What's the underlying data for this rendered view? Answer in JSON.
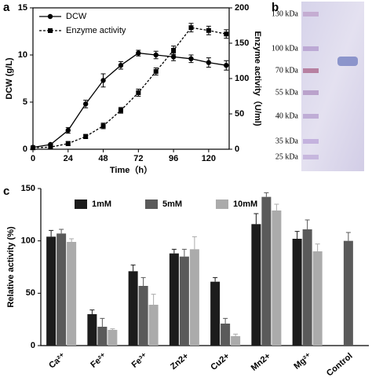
{
  "chart_data": [
    {
      "type": "line",
      "panel_label": "a",
      "x": [
        0,
        12,
        24,
        36,
        48,
        60,
        72,
        84,
        96,
        108,
        120,
        132
      ],
      "xlim": [
        0,
        134
      ],
      "xticks": [
        0,
        24,
        48,
        72,
        96,
        120
      ],
      "xlabel": "Time（h）",
      "ylabel": "DCW (g/L)",
      "ylim": [
        0,
        15
      ],
      "yticks": [
        0,
        5,
        10,
        15
      ],
      "y2label": "Enzyme activity（U/ml)",
      "y2lim": [
        0,
        200
      ],
      "y2ticks": [
        0,
        50,
        100,
        150,
        200
      ],
      "legend": "upper left",
      "series": [
        {
          "name": "DCW",
          "color": "#000000",
          "marker": "circle",
          "line_style": "solid",
          "values": [
            0.2,
            0.5,
            2.0,
            4.8,
            7.3,
            8.9,
            10.2,
            10.0,
            9.8,
            9.6,
            9.2,
            8.9
          ],
          "errors": [
            0.1,
            0.1,
            0.3,
            0.4,
            0.7,
            0.4,
            0.3,
            0.4,
            0.4,
            0.4,
            0.5,
            0.5
          ]
        },
        {
          "name": "Enzyme activity",
          "color": "#000000",
          "marker": "square",
          "line_style": "dashed",
          "axis": "y2",
          "values": [
            2,
            3,
            8,
            18,
            33,
            55,
            80,
            110,
            140,
            172,
            168,
            163
          ],
          "errors": [
            2,
            2,
            3,
            3,
            4,
            4,
            5,
            5,
            6,
            6,
            6,
            6
          ]
        }
      ]
    },
    {
      "type": "bar",
      "panel_label": "c",
      "categories": [
        "Ca²⁺",
        "Fe²⁺",
        "Fe³⁺",
        "Zn2+",
        "Cu2+",
        "Mn2+",
        "Mg²⁺",
        "Control"
      ],
      "ylabel": "Relative activity (%)",
      "ylim": [
        0,
        150
      ],
      "yticks": [
        0,
        50,
        100,
        150
      ],
      "legend": "upper left",
      "series": [
        {
          "name": "1mM",
          "color": "#1c1c1c",
          "values": [
            104,
            30,
            71,
            88,
            61,
            116,
            102,
            null
          ],
          "errors": [
            6,
            4,
            6,
            4,
            4,
            10,
            7,
            null
          ]
        },
        {
          "name": "5mM",
          "color": "#5a5a5a",
          "values": [
            107,
            18,
            57,
            85,
            21,
            142,
            111,
            100
          ],
          "errors": [
            4,
            8,
            8,
            7,
            5,
            4,
            9,
            8
          ]
        },
        {
          "name": "10mM",
          "color": "#ababab",
          "values": [
            99,
            15,
            39,
            92,
            9,
            129,
            90,
            null
          ],
          "errors": [
            3,
            1,
            10,
            12,
            2,
            6,
            7,
            null
          ]
        }
      ]
    }
  ],
  "gel": {
    "panel_label": "b",
    "ladder": [
      "130 kDa",
      "100 kDa",
      "70 kDa",
      "55 kDa",
      "40 kDa",
      "35 kDa",
      "25 kDa"
    ]
  }
}
